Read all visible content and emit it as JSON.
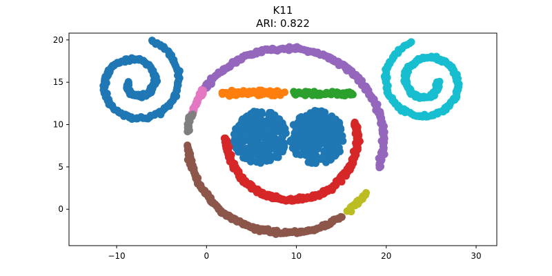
{
  "chart_data": {
    "type": "scatter",
    "title": "K11",
    "subtitle": "ARI: 0.822",
    "xlabel": "",
    "ylabel": "",
    "xlim": [
      -15.3,
      32.3
    ],
    "ylim": [
      -4.3,
      20.8
    ],
    "x_ticks": [
      -10,
      0,
      10,
      20,
      30
    ],
    "y_ticks": [
      0,
      5,
      10,
      15,
      20
    ],
    "x_tick_labels": [
      "−10",
      "0",
      "10",
      "20",
      "30"
    ],
    "y_tick_labels": [
      "0",
      "5",
      "10",
      "15",
      "20"
    ],
    "grid": false,
    "legend": "none",
    "series": [
      {
        "shape": "spiral",
        "color": "#1f77b4",
        "center": [
          -7.9,
          14.9
        ],
        "start_radius": 0.8,
        "end_radius": 5.3,
        "start_angle_deg": 180,
        "end_angle_deg": 790,
        "direction": "clockwise"
      },
      {
        "shape": "spiral",
        "color": "#17becf",
        "center": [
          24.5,
          15.0
        ],
        "start_radius": 1.2,
        "end_radius": 5.0,
        "start_angle_deg": 0,
        "end_angle_deg": -610,
        "direction": "counterclockwise"
      },
      {
        "shape": "circle",
        "color": "#1f77b4",
        "center": [
          6.0,
          8.5
        ],
        "radius": 3.0
      },
      {
        "shape": "circle",
        "color": "#1f77b4",
        "center": [
          12.3,
          8.5
        ],
        "radius": 3.0
      },
      {
        "shape": "segment",
        "color": "#ff7f0e",
        "from": [
          1.7,
          13.7
        ],
        "to": [
          8.7,
          13.7
        ]
      },
      {
        "shape": "segment",
        "color": "#2ca02c",
        "from": [
          9.7,
          13.7
        ],
        "to": [
          16.3,
          13.7
        ]
      },
      {
        "shape": "arc",
        "color": "#d62728",
        "center": [
          9.5,
          8.4
        ],
        "radius": 7.3,
        "start_angle_deg": 180,
        "end_angle_deg": 375
      },
      {
        "shape": "arc",
        "color": "#9467bd",
        "center": [
          8.8,
          8.1
        ],
        "radius": 10.9,
        "start_angle_deg": 147,
        "end_angle_deg": -17
      },
      {
        "shape": "arc",
        "color": "#e377c2",
        "center": [
          8.8,
          8.1
        ],
        "radius": 10.9,
        "start_angle_deg": 147,
        "end_angle_deg": 163
      },
      {
        "shape": "arc",
        "color": "#7f7f7f",
        "center": [
          8.8,
          8.1
        ],
        "radius": 10.9,
        "start_angle_deg": 163,
        "end_angle_deg": 174
      },
      {
        "shape": "arc",
        "color": "#8c564b",
        "center": [
          8.8,
          8.1
        ],
        "radius": 10.9,
        "start_angle_deg": 183,
        "end_angle_deg": 305
      },
      {
        "shape": "arc",
        "color": "#bcbd22",
        "center": [
          8.8,
          8.1
        ],
        "radius": 10.9,
        "start_angle_deg": 310,
        "end_angle_deg": 325
      }
    ]
  }
}
